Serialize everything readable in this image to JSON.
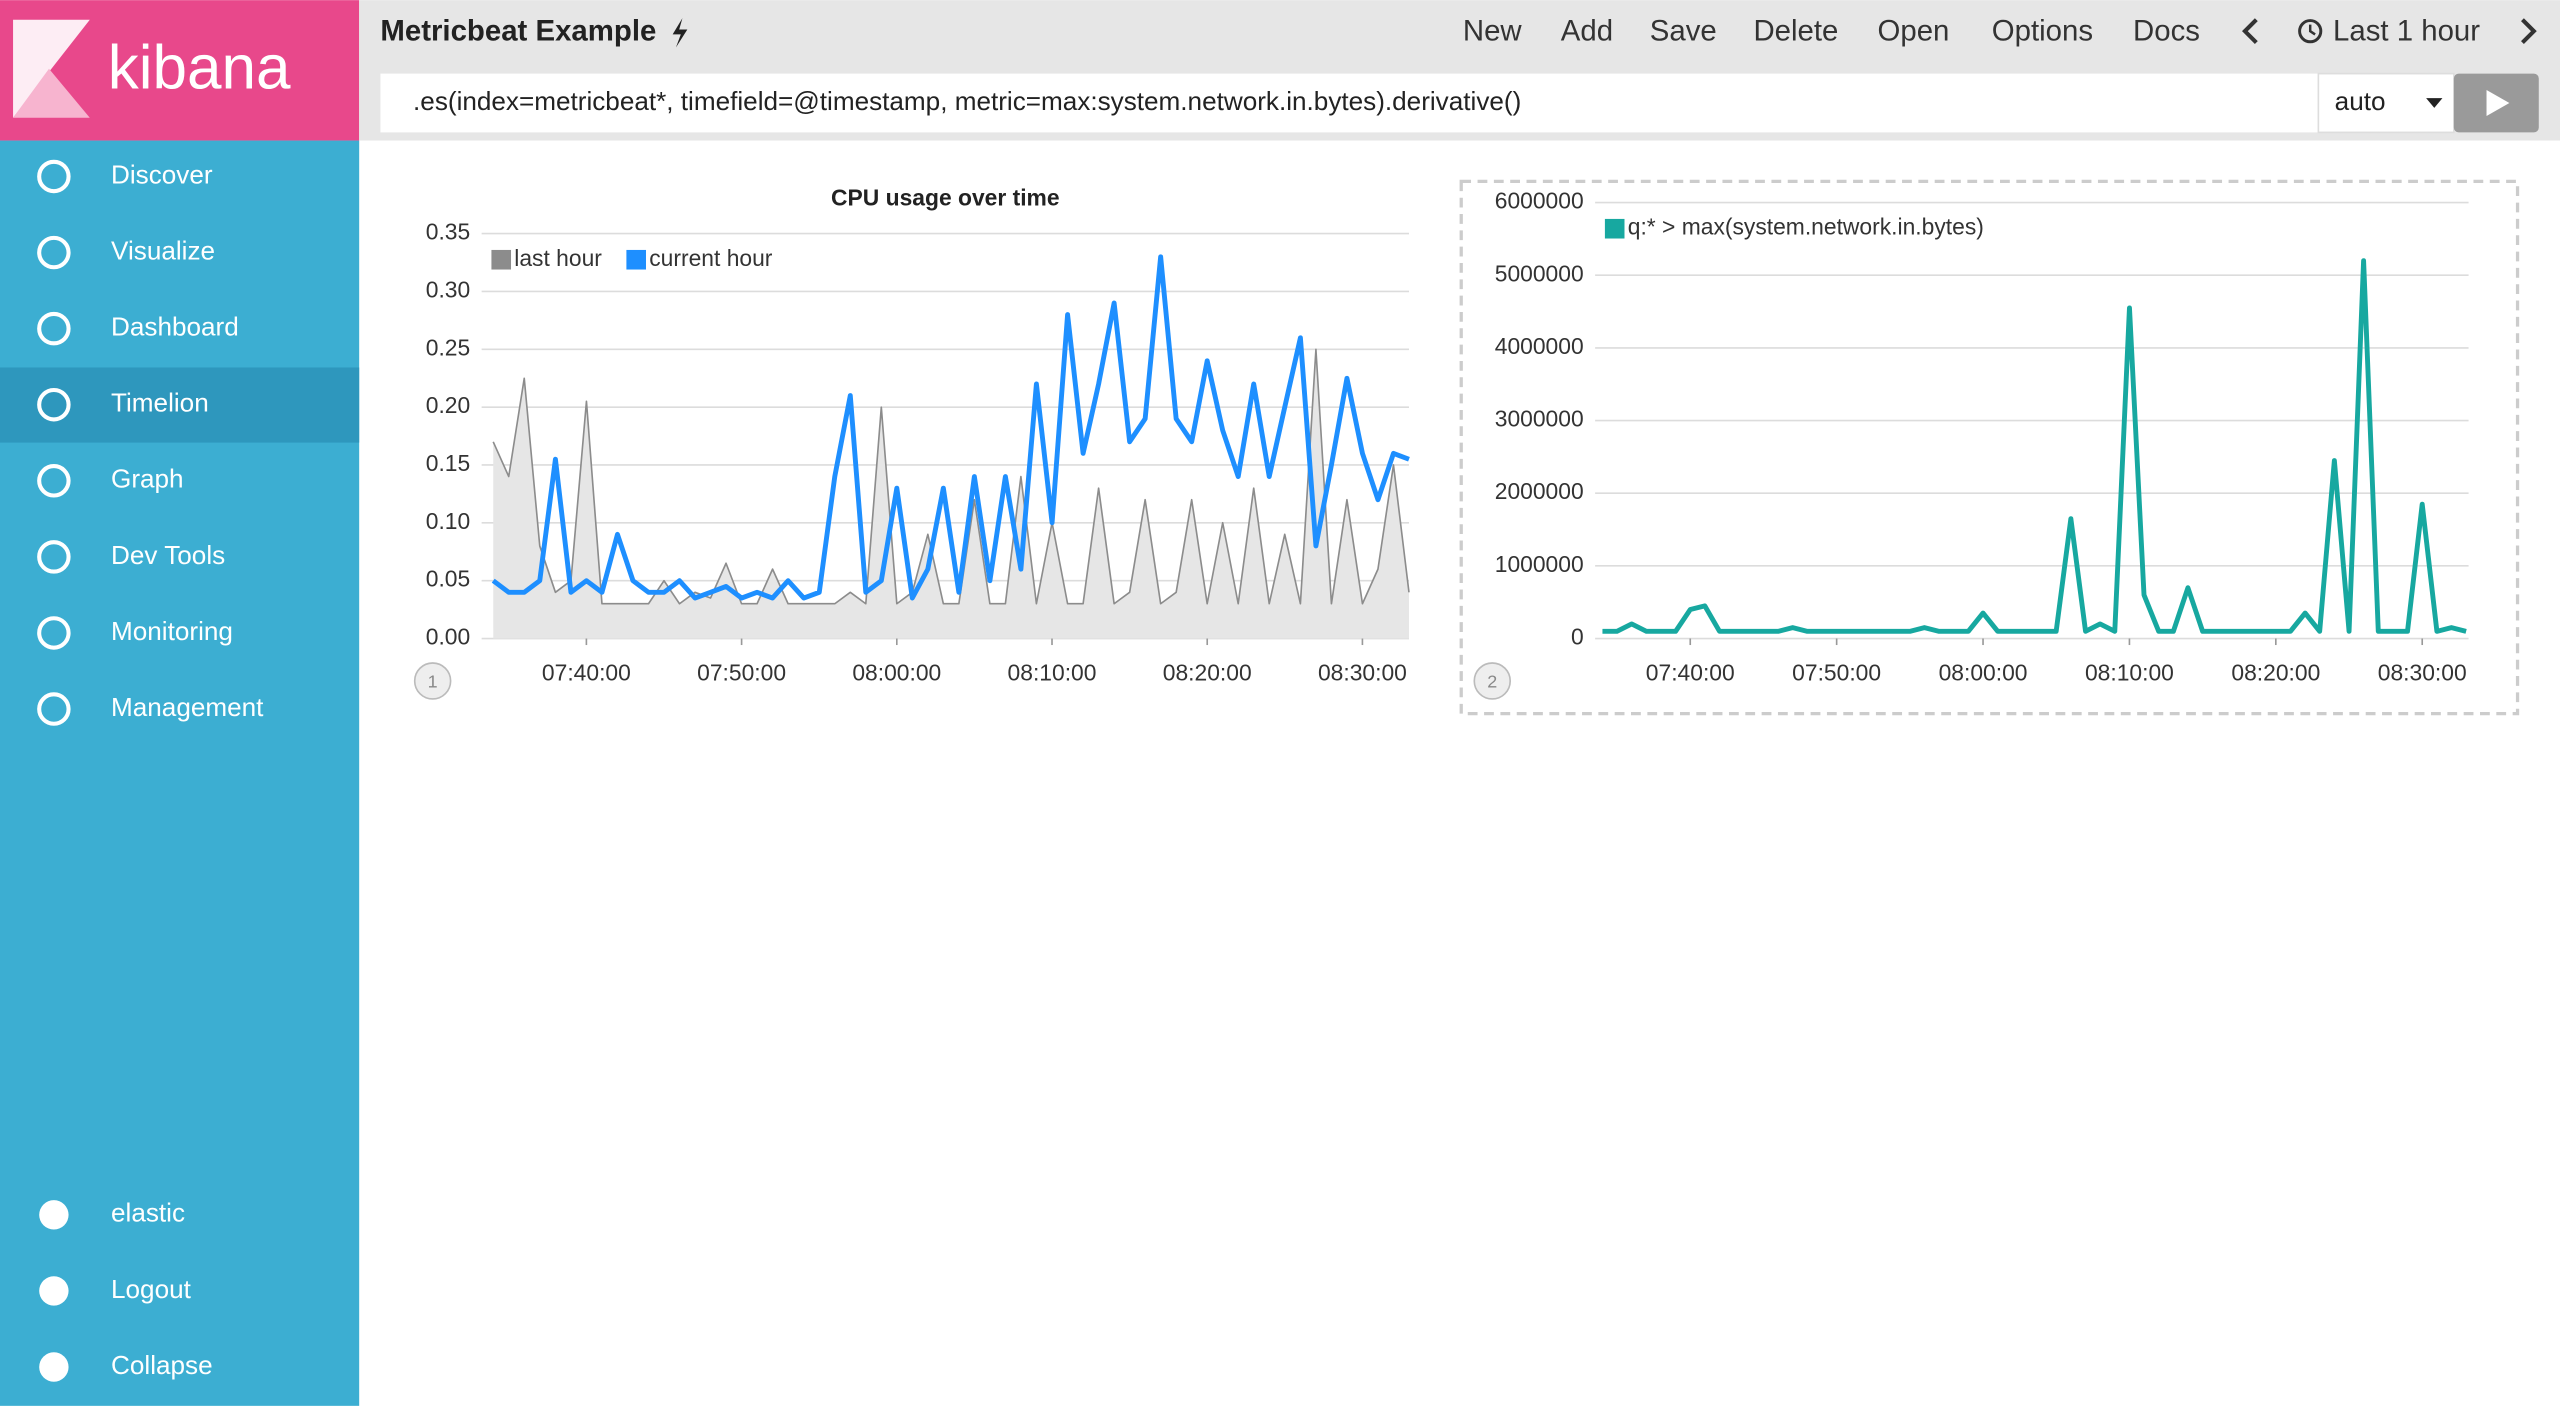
{
  "app": {
    "logo": "kibana",
    "nav": [
      "Discover",
      "Visualize",
      "Dashboard",
      "Timelion",
      "Graph",
      "Dev Tools",
      "Monitoring",
      "Management"
    ],
    "user_nav": [
      "elastic",
      "Logout",
      "Collapse"
    ]
  },
  "toolbar": {
    "title": "Metricbeat Example",
    "menu": [
      "New",
      "Add",
      "Save",
      "Delete",
      "Open",
      "Options",
      "Docs"
    ],
    "time": "Last 1 hour"
  },
  "expression": ".es(index=metricbeat*, timefield=@timestamp, metric=max:system.network.in.bytes).derivative()",
  "interval": "auto",
  "chart_data": [
    {
      "type": "line",
      "panel": "1",
      "title": "CPU usage over time",
      "legend": "top-left",
      "grid": true,
      "x": [
        "07:34:00",
        "07:35:00",
        "07:36:00",
        "07:37:00",
        "07:38:00",
        "07:39:00",
        "07:40:00",
        "07:41:00",
        "07:42:00",
        "07:43:00",
        "07:44:00",
        "07:45:00",
        "07:46:00",
        "07:47:00",
        "07:48:00",
        "07:49:00",
        "07:50:00",
        "07:51:00",
        "07:52:00",
        "07:53:00",
        "07:54:00",
        "07:55:00",
        "07:56:00",
        "07:57:00",
        "07:58:00",
        "07:59:00",
        "08:00:00",
        "08:01:00",
        "08:02:00",
        "08:03:00",
        "08:04:00",
        "08:05:00",
        "08:06:00",
        "08:07:00",
        "08:08:00",
        "08:09:00",
        "08:10:00",
        "08:11:00",
        "08:12:00",
        "08:13:00",
        "08:14:00",
        "08:15:00",
        "08:16:00",
        "08:17:00",
        "08:18:00",
        "08:19:00",
        "08:20:00",
        "08:21:00",
        "08:22:00",
        "08:23:00",
        "08:24:00",
        "08:25:00",
        "08:26:00",
        "08:27:00",
        "08:28:00",
        "08:29:00",
        "08:30:00",
        "08:31:00",
        "08:32:00",
        "08:33:00"
      ],
      "xlim": [
        "07:33:15",
        "08:33:00"
      ],
      "xticks": [
        "07:40:00",
        "07:50:00",
        "08:00:00",
        "08:10:00",
        "08:20:00",
        "08:30:00"
      ],
      "ylim": [
        0,
        0.35
      ],
      "yticks": [
        {
          "value": 0,
          "label": "0.00"
        },
        {
          "value": 0.05,
          "label": "0.05"
        },
        {
          "value": 0.1,
          "label": "0.10"
        },
        {
          "value": 0.15,
          "label": "0.15"
        },
        {
          "value": 0.2,
          "label": "0.20"
        },
        {
          "value": 0.25,
          "label": "0.25"
        },
        {
          "value": 0.3,
          "label": "0.30"
        },
        {
          "value": 0.35,
          "label": "0.35"
        }
      ],
      "series": [
        {
          "name": "last hour",
          "color": "#8c8c8c",
          "area": true,
          "values": [
            0.17,
            0.14,
            0.225,
            0.08,
            0.04,
            0.05,
            0.205,
            0.03,
            0.03,
            0.03,
            0.03,
            0.05,
            0.03,
            0.04,
            0.035,
            0.065,
            0.03,
            0.03,
            0.06,
            0.03,
            0.03,
            0.03,
            0.03,
            0.04,
            0.03,
            0.2,
            0.03,
            0.04,
            0.09,
            0.03,
            0.03,
            0.12,
            0.03,
            0.03,
            0.14,
            0.03,
            0.1,
            0.03,
            0.03,
            0.13,
            0.03,
            0.04,
            0.12,
            0.03,
            0.04,
            0.12,
            0.03,
            0.1,
            0.03,
            0.13,
            0.03,
            0.09,
            0.03,
            0.25,
            0.03,
            0.12,
            0.03,
            0.06,
            0.15,
            0.04
          ]
        },
        {
          "name": "current hour",
          "color": "#1e8fff",
          "values": [
            0.05,
            0.04,
            0.04,
            0.05,
            0.155,
            0.04,
            0.05,
            0.04,
            0.09,
            0.05,
            0.04,
            0.04,
            0.05,
            0.035,
            0.04,
            0.045,
            0.035,
            0.04,
            0.035,
            0.05,
            0.035,
            0.04,
            0.14,
            0.21,
            0.04,
            0.05,
            0.13,
            0.035,
            0.06,
            0.13,
            0.04,
            0.14,
            0.05,
            0.14,
            0.06,
            0.22,
            0.1,
            0.28,
            0.16,
            0.22,
            0.29,
            0.17,
            0.19,
            0.33,
            0.19,
            0.17,
            0.24,
            0.18,
            0.14,
            0.22,
            0.14,
            0.2,
            0.26,
            0.08,
            0.15,
            0.225,
            0.16,
            0.12,
            0.16,
            0.155
          ]
        }
      ]
    },
    {
      "type": "line",
      "panel": "2",
      "legend": "top-left",
      "grid": true,
      "x": [
        "07:34:00",
        "07:35:00",
        "07:36:00",
        "07:37:00",
        "07:38:00",
        "07:39:00",
        "07:40:00",
        "07:41:00",
        "07:42:00",
        "07:43:00",
        "07:44:00",
        "07:45:00",
        "07:46:00",
        "07:47:00",
        "07:48:00",
        "07:49:00",
        "07:50:00",
        "07:51:00",
        "07:52:00",
        "07:53:00",
        "07:54:00",
        "07:55:00",
        "07:56:00",
        "07:57:00",
        "07:58:00",
        "07:59:00",
        "08:00:00",
        "08:01:00",
        "08:02:00",
        "08:03:00",
        "08:04:00",
        "08:05:00",
        "08:06:00",
        "08:07:00",
        "08:08:00",
        "08:09:00",
        "08:10:00",
        "08:11:00",
        "08:12:00",
        "08:13:00",
        "08:14:00",
        "08:15:00",
        "08:16:00",
        "08:17:00",
        "08:18:00",
        "08:19:00",
        "08:20:00",
        "08:21:00",
        "08:22:00",
        "08:23:00",
        "08:24:00",
        "08:25:00",
        "08:26:00",
        "08:27:00",
        "08:28:00",
        "08:29:00",
        "08:30:00",
        "08:31:00",
        "08:32:00",
        "08:33:00"
      ],
      "xlim": [
        "07:33:30",
        "08:33:10"
      ],
      "xticks": [
        "07:40:00",
        "07:50:00",
        "08:00:00",
        "08:10:00",
        "08:20:00",
        "08:30:00"
      ],
      "ylim": [
        0,
        6000000
      ],
      "yticks": [
        0,
        1000000,
        2000000,
        3000000,
        4000000,
        5000000,
        6000000
      ],
      "series": [
        {
          "name": "q:* > max(system.network.in.bytes)",
          "color": "#17a8a0",
          "values": [
            100000,
            100000,
            200000,
            100000,
            100000,
            100000,
            400000,
            450000,
            100000,
            100000,
            100000,
            100000,
            100000,
            150000,
            100000,
            100000,
            100000,
            100000,
            100000,
            100000,
            100000,
            100000,
            150000,
            100000,
            100000,
            100000,
            350000,
            100000,
            100000,
            100000,
            100000,
            100000,
            1650000,
            100000,
            200000,
            100000,
            4550000,
            600000,
            100000,
            100000,
            700000,
            100000,
            100000,
            100000,
            100000,
            100000,
            100000,
            100000,
            350000,
            100000,
            2450000,
            100000,
            5200000,
            100000,
            100000,
            100000,
            1850000,
            100000,
            150000,
            100000
          ]
        }
      ]
    }
  ]
}
